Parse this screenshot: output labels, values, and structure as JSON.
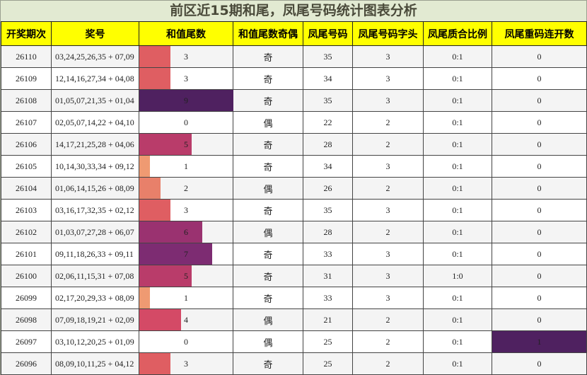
{
  "title": "前区近15期和尾，凤尾号码统计图表分析",
  "headers": [
    "开奖期次",
    "奖号",
    "和值尾数",
    "和值尾数奇偶",
    "凤尾号码",
    "凤尾号码字头",
    "凤尾质合比例",
    "凤尾重码连开数"
  ],
  "bar_max": 9,
  "bar_colors": {
    "0": "#ffffff",
    "1": "#ef9a72",
    "2": "#e8806a",
    "3": "#df5e62",
    "4": "#d44a66",
    "5": "#b93c6a",
    "6": "#9a3270",
    "7": "#7d2c72",
    "9": "#4f2160"
  },
  "highlight_color": "#4f2160",
  "chart_data": {
    "type": "table",
    "rows": [
      {
        "period": "26110",
        "numbers": "03,24,25,26,35 + 07,09",
        "sum_tail": 3,
        "parity": "奇",
        "tail_number": "35",
        "tail_head": "3",
        "prime_ratio": "0:1",
        "repeat_count": 0
      },
      {
        "period": "26109",
        "numbers": "12,14,16,27,34 + 04,08",
        "sum_tail": 3,
        "parity": "奇",
        "tail_number": "34",
        "tail_head": "3",
        "prime_ratio": "0:1",
        "repeat_count": 0
      },
      {
        "period": "26108",
        "numbers": "01,05,07,21,35 + 01,04",
        "sum_tail": 9,
        "parity": "奇",
        "tail_number": "35",
        "tail_head": "3",
        "prime_ratio": "0:1",
        "repeat_count": 0
      },
      {
        "period": "26107",
        "numbers": "02,05,07,14,22 + 04,10",
        "sum_tail": 0,
        "parity": "偶",
        "tail_number": "22",
        "tail_head": "2",
        "prime_ratio": "0:1",
        "repeat_count": 0
      },
      {
        "period": "26106",
        "numbers": "14,17,21,25,28 + 04,06",
        "sum_tail": 5,
        "parity": "奇",
        "tail_number": "28",
        "tail_head": "2",
        "prime_ratio": "0:1",
        "repeat_count": 0
      },
      {
        "period": "26105",
        "numbers": "10,14,30,33,34 + 09,12",
        "sum_tail": 1,
        "parity": "奇",
        "tail_number": "34",
        "tail_head": "3",
        "prime_ratio": "0:1",
        "repeat_count": 0
      },
      {
        "period": "26104",
        "numbers": "01,06,14,15,26 + 08,09",
        "sum_tail": 2,
        "parity": "偶",
        "tail_number": "26",
        "tail_head": "2",
        "prime_ratio": "0:1",
        "repeat_count": 0
      },
      {
        "period": "26103",
        "numbers": "03,16,17,32,35 + 02,12",
        "sum_tail": 3,
        "parity": "奇",
        "tail_number": "35",
        "tail_head": "3",
        "prime_ratio": "0:1",
        "repeat_count": 0
      },
      {
        "period": "26102",
        "numbers": "01,03,07,27,28 + 06,07",
        "sum_tail": 6,
        "parity": "偶",
        "tail_number": "28",
        "tail_head": "2",
        "prime_ratio": "0:1",
        "repeat_count": 0
      },
      {
        "period": "26101",
        "numbers": "09,11,18,26,33 + 09,11",
        "sum_tail": 7,
        "parity": "奇",
        "tail_number": "33",
        "tail_head": "3",
        "prime_ratio": "0:1",
        "repeat_count": 0
      },
      {
        "period": "26100",
        "numbers": "02,06,11,15,31 + 07,08",
        "sum_tail": 5,
        "parity": "奇",
        "tail_number": "31",
        "tail_head": "3",
        "prime_ratio": "1:0",
        "repeat_count": 0
      },
      {
        "period": "26099",
        "numbers": "02,17,20,29,33 + 08,09",
        "sum_tail": 1,
        "parity": "奇",
        "tail_number": "33",
        "tail_head": "3",
        "prime_ratio": "0:1",
        "repeat_count": 0
      },
      {
        "period": "26098",
        "numbers": "07,09,18,19,21 + 02,09",
        "sum_tail": 4,
        "parity": "偶",
        "tail_number": "21",
        "tail_head": "2",
        "prime_ratio": "0:1",
        "repeat_count": 0
      },
      {
        "period": "26097",
        "numbers": "03,10,12,20,25 + 01,09",
        "sum_tail": 0,
        "parity": "偶",
        "tail_number": "25",
        "tail_head": "2",
        "prime_ratio": "0:1",
        "repeat_count": 1
      },
      {
        "period": "26096",
        "numbers": "08,09,10,11,25 + 04,12",
        "sum_tail": 3,
        "parity": "奇",
        "tail_number": "25",
        "tail_head": "2",
        "prime_ratio": "0:1",
        "repeat_count": 0
      }
    ]
  }
}
